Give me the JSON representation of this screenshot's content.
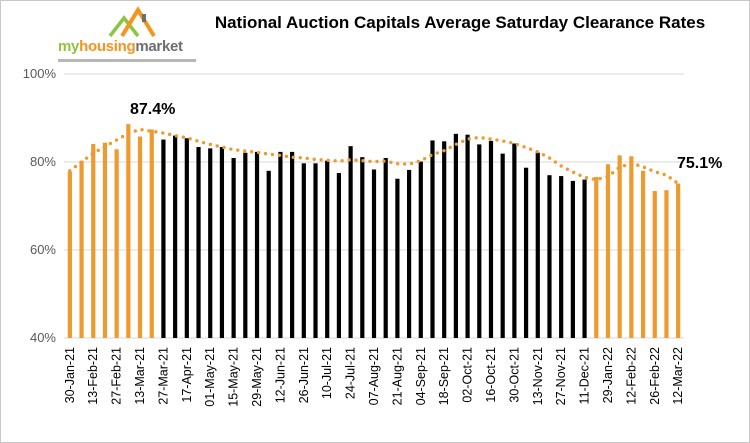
{
  "title": "National Auction Capitals Average Saturday Clearance Rates",
  "logo": {
    "part1": "my",
    "part2": "housing",
    "part3": "market"
  },
  "annotations": {
    "start": "87.4%",
    "end": "75.1%"
  },
  "colors": {
    "orange": "#ED9A2E",
    "black": "#000000",
    "trend": "#ED9A2E",
    "grid": "#D9D9D9"
  },
  "chart_data": {
    "type": "bar",
    "ylim": [
      40,
      100
    ],
    "yticks": [
      "40%",
      "60%",
      "80%",
      "100%"
    ],
    "xtick_labels": [
      "30-Jan-21",
      "13-Feb-21",
      "27-Feb-21",
      "13-Mar-21",
      "27-Mar-21",
      "17-Apr-21",
      "01-May-21",
      "15-May-21",
      "29-May-21",
      "12-Jun-21",
      "26-Jun-21",
      "10-Jul-21",
      "24-Jul-21",
      "07-Aug-21",
      "21-Aug-21",
      "04-Sep-21",
      "18-Sep-21",
      "02-Oct-21",
      "16-Oct-21",
      "30-Oct-21",
      "13-Nov-21",
      "27-Nov-21",
      "11-Dec-21",
      "29-Jan-22",
      "12-Feb-22",
      "26-Feb-22",
      "12-Mar-22"
    ],
    "values": [
      77.8,
      80.3,
      84.1,
      84.4,
      82.9,
      88.6,
      85.8,
      87.4,
      85.1,
      86.0,
      85.4,
      83.4,
      83.1,
      83.4,
      80.9,
      82.1,
      82.3,
      78.0,
      82.3,
      82.3,
      79.7,
      79.7,
      80.3,
      77.5,
      83.6,
      81.1,
      78.3,
      80.9,
      76.2,
      78.2,
      80.1,
      84.9,
      84.7,
      86.4,
      86.2,
      84.0,
      84.8,
      81.9,
      84.2,
      78.7,
      82.1,
      77.0,
      76.8,
      75.7,
      76.0,
      76.6,
      79.5,
      81.5,
      81.3,
      78.0,
      73.4,
      73.6,
      75.1
    ],
    "bar_colors": [
      "orange",
      "orange",
      "orange",
      "orange",
      "orange",
      "orange",
      "orange",
      "orange",
      "black",
      "black",
      "black",
      "black",
      "black",
      "black",
      "black",
      "black",
      "black",
      "black",
      "black",
      "black",
      "black",
      "black",
      "black",
      "black",
      "black",
      "black",
      "black",
      "black",
      "black",
      "black",
      "black",
      "black",
      "black",
      "black",
      "black",
      "black",
      "black",
      "black",
      "black",
      "black",
      "black",
      "black",
      "black",
      "black",
      "black",
      "orange",
      "orange",
      "orange",
      "orange",
      "orange",
      "orange",
      "orange",
      "orange"
    ],
    "trend": [
      78.0,
      80.0,
      82.0,
      83.5,
      85.0,
      86.5,
      87.4,
      87.0,
      86.6,
      86.0,
      85.5,
      84.7,
      84.0,
      83.4,
      82.8,
      82.5,
      82.2,
      81.8,
      81.5,
      81.1,
      80.9,
      80.6,
      80.4,
      80.2,
      80.5,
      80.3,
      80.1,
      80.2,
      79.6,
      79.5,
      80.3,
      81.7,
      82.6,
      84.0,
      85.2,
      85.6,
      85.2,
      84.8,
      84.2,
      83.3,
      82.3,
      80.9,
      79.1,
      77.7,
      76.5,
      76.0,
      76.7,
      78.8,
      79.7,
      78.9,
      77.8,
      77.0,
      75.1
    ]
  }
}
